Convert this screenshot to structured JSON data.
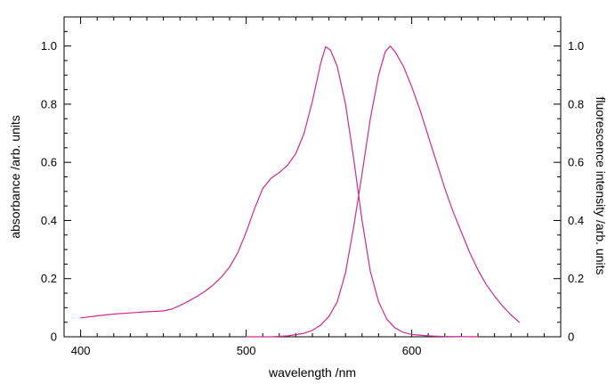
{
  "chart_data": {
    "type": "line",
    "xlabel": "wavelength /nm",
    "ylabel": "absorbance /arb. units",
    "y2label": "fluorescence intensity /arb. units",
    "xlim": [
      390,
      690
    ],
    "ylim": [
      0,
      1.1
    ],
    "y2lim": [
      0,
      1.1
    ],
    "x_ticks": [
      400,
      500,
      600
    ],
    "y_ticks": [
      0,
      0.2,
      0.4,
      0.6,
      0.8,
      1.0
    ],
    "y_tick_labels": [
      "0",
      "0.2",
      "0.4",
      "0.6",
      "0.8",
      "1.0"
    ],
    "y2_ticks": [
      0,
      0.2,
      0.4,
      0.6,
      0.8,
      1.0
    ],
    "y2_tick_labels": [
      "0",
      "0.2",
      "0.4",
      "0.6",
      "0.8",
      "1.0"
    ],
    "grid": false,
    "line_color": "#cc2c8f",
    "series": [
      {
        "axis": "left",
        "points": [
          [
            400,
            0.065
          ],
          [
            410,
            0.072
          ],
          [
            420,
            0.078
          ],
          [
            430,
            0.082
          ],
          [
            440,
            0.086
          ],
          [
            450,
            0.089
          ],
          [
            455,
            0.095
          ],
          [
            460,
            0.108
          ],
          [
            465,
            0.122
          ],
          [
            470,
            0.138
          ],
          [
            475,
            0.156
          ],
          [
            480,
            0.178
          ],
          [
            485,
            0.205
          ],
          [
            490,
            0.24
          ],
          [
            495,
            0.29
          ],
          [
            500,
            0.36
          ],
          [
            505,
            0.44
          ],
          [
            510,
            0.51
          ],
          [
            515,
            0.545
          ],
          [
            520,
            0.565
          ],
          [
            525,
            0.59
          ],
          [
            530,
            0.63
          ],
          [
            535,
            0.7
          ],
          [
            540,
            0.81
          ],
          [
            545,
            0.94
          ],
          [
            548,
            0.998
          ],
          [
            551,
            0.985
          ],
          [
            555,
            0.93
          ],
          [
            560,
            0.8
          ],
          [
            565,
            0.61
          ],
          [
            570,
            0.4
          ],
          [
            575,
            0.225
          ],
          [
            580,
            0.12
          ],
          [
            585,
            0.06
          ],
          [
            590,
            0.03
          ],
          [
            595,
            0.015
          ],
          [
            600,
            0.008
          ],
          [
            610,
            0.003
          ],
          [
            620,
            0.001
          ],
          [
            640,
            0.0
          ]
        ]
      },
      {
        "axis": "right",
        "points": [
          [
            500,
            0.0
          ],
          [
            515,
            0.0
          ],
          [
            525,
            0.003
          ],
          [
            535,
            0.012
          ],
          [
            540,
            0.022
          ],
          [
            545,
            0.04
          ],
          [
            550,
            0.07
          ],
          [
            555,
            0.12
          ],
          [
            560,
            0.22
          ],
          [
            565,
            0.38
          ],
          [
            570,
            0.56
          ],
          [
            575,
            0.75
          ],
          [
            580,
            0.9
          ],
          [
            584,
            0.98
          ],
          [
            587,
            1.0
          ],
          [
            590,
            0.98
          ],
          [
            595,
            0.93
          ],
          [
            600,
            0.86
          ],
          [
            605,
            0.78
          ],
          [
            610,
            0.69
          ],
          [
            615,
            0.6
          ],
          [
            620,
            0.51
          ],
          [
            625,
            0.43
          ],
          [
            630,
            0.36
          ],
          [
            635,
            0.29
          ],
          [
            640,
            0.23
          ],
          [
            645,
            0.18
          ],
          [
            650,
            0.14
          ],
          [
            655,
            0.105
          ],
          [
            660,
            0.075
          ],
          [
            665,
            0.05
          ]
        ]
      }
    ]
  }
}
